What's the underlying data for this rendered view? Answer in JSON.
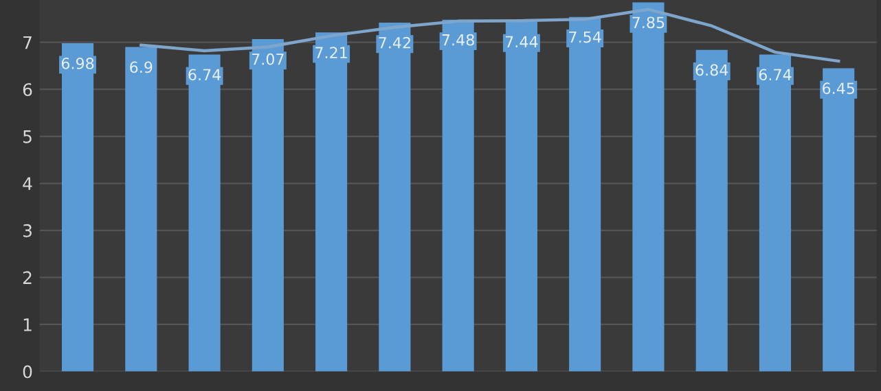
{
  "chart_data": {
    "type": "bar",
    "categories": [
      null,
      null,
      null,
      null,
      null,
      null,
      null,
      null,
      null,
      null,
      null,
      null,
      null
    ],
    "series": [
      {
        "color": "#5b9bd5",
        "values": [
          6.98,
          6.9,
          6.74,
          7.07,
          7.21,
          7.42,
          7.48,
          7.44,
          7.54,
          7.85,
          6.84,
          6.74,
          6.45
        ],
        "value_labels": [
          "6.98",
          "6.9",
          "6.74",
          "7.07",
          "7.21",
          "7.42",
          "7.48",
          "7.44",
          "7.54",
          "7.85",
          "6.84",
          "6.74",
          "6.45"
        ]
      },
      {
        "type": "line",
        "color": "#7ea6cc",
        "values": [
          null,
          6.94,
          6.82,
          6.9,
          7.14,
          7.32,
          7.45,
          7.46,
          7.49,
          7.7,
          7.35,
          6.79,
          6.6
        ]
      }
    ],
    "ylim": [
      0,
      7.9
    ],
    "yticks": [
      0,
      1,
      2,
      3,
      4,
      5,
      6,
      7
    ],
    "grid": "y",
    "tick_labels": "y",
    "marker": "none",
    "line_style": "solid"
  }
}
